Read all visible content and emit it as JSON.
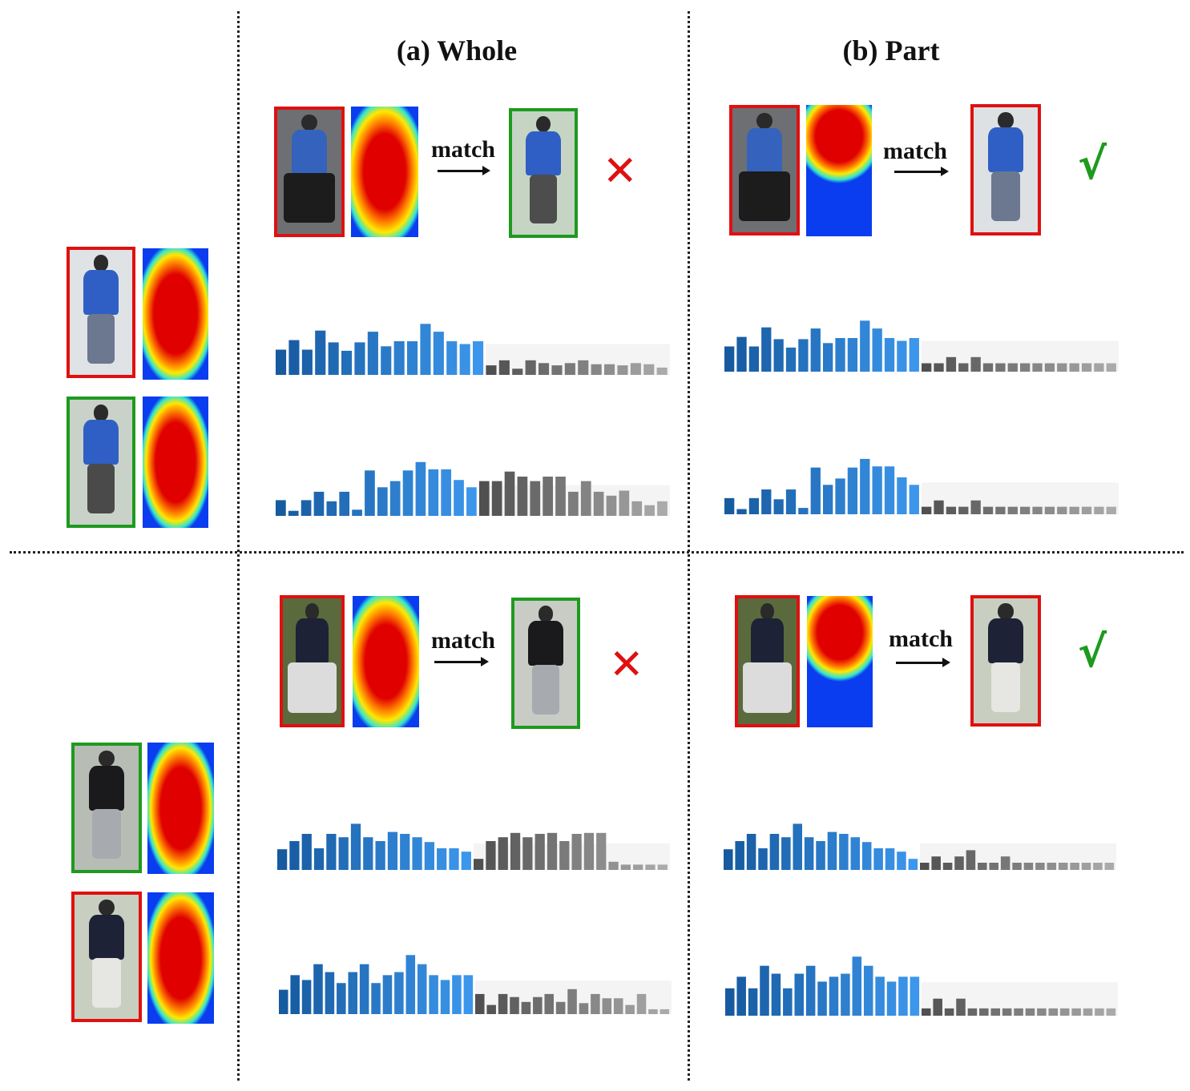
{
  "headers": {
    "whole": "(a) Whole",
    "part": "(b) Part"
  },
  "match_label": "match",
  "colors": {
    "wrong_border": "#e01010",
    "correct_border": "#1e9a1e",
    "wrong_mark": "#e01010",
    "correct_mark": "#1e9a1e",
    "feature_blue": "#1f78c8",
    "feature_gray": "#6e6e6e"
  },
  "panels": [
    {
      "row": 1,
      "query_images": [
        {
          "border": "red",
          "icon": "person-blue-shirt-shorts-back"
        },
        {
          "border": "green",
          "icon": "person-blue-shirt-shorts-front"
        }
      ],
      "whole": {
        "probe": {
          "border": "red",
          "icon": "person-seated-occluded-by-chair"
        },
        "heatmap": "full-body",
        "result": {
          "border": "green",
          "icon": "person-blue-shirt-walking"
        },
        "mark": "✕",
        "mark_icon": "cross-icon",
        "bars_top": [
          0.45,
          0.62,
          0.45,
          0.79,
          0.58,
          0.43,
          0.58,
          0.77,
          0.51,
          0.6,
          0.6,
          0.91,
          0.77,
          0.6,
          0.55,
          0.6,
          0.17,
          0.26,
          0.11,
          0.26,
          0.21,
          0.17,
          0.21,
          0.26,
          0.19,
          0.19,
          0.17,
          0.21,
          0.19,
          0.13
        ],
        "bars_bottom": [
          0.28,
          0.09,
          0.28,
          0.43,
          0.26,
          0.43,
          0.11,
          0.81,
          0.51,
          0.62,
          0.81,
          0.96,
          0.83,
          0.83,
          0.64,
          0.51,
          0.62,
          0.62,
          0.79,
          0.7,
          0.62,
          0.7,
          0.7,
          0.43,
          0.62,
          0.43,
          0.36,
          0.45,
          0.26,
          0.19,
          0.26
        ]
      },
      "part": {
        "probe": {
          "border": "red",
          "icon": "person-seated-occluded-by-chair"
        },
        "heatmap": "upper-body",
        "result": {
          "border": "red",
          "icon": "person-blue-shirt-shorts-back"
        },
        "mark": "√",
        "mark_icon": "checkmark-icon",
        "bars_top": [
          0.45,
          0.62,
          0.45,
          0.79,
          0.58,
          0.43,
          0.58,
          0.77,
          0.51,
          0.6,
          0.6,
          0.91,
          0.77,
          0.6,
          0.55,
          0.6,
          0.15,
          0.15,
          0.26,
          0.15,
          0.26,
          0.15,
          0.15,
          0.15,
          0.15,
          0.15,
          0.15,
          0.15,
          0.15,
          0.15,
          0.15,
          0.15
        ],
        "bars_bottom": [
          0.28,
          0.09,
          0.28,
          0.43,
          0.26,
          0.43,
          0.11,
          0.81,
          0.51,
          0.62,
          0.81,
          0.96,
          0.83,
          0.83,
          0.64,
          0.51,
          0.13,
          0.24,
          0.13,
          0.13,
          0.24,
          0.13,
          0.13,
          0.13,
          0.13,
          0.13,
          0.13,
          0.13,
          0.13,
          0.13,
          0.13,
          0.13
        ]
      }
    },
    {
      "row": 2,
      "query_images": [
        {
          "border": "green",
          "icon": "person-black-jacket-back"
        },
        {
          "border": "red",
          "icon": "person-dark-top-white-pants-front"
        }
      ],
      "whole": {
        "probe": {
          "border": "red",
          "icon": "person-occluded-by-trash-bin"
        },
        "heatmap": "full-body",
        "result": {
          "border": "green",
          "icon": "person-black-jacket-back"
        },
        "mark": "✕",
        "mark_icon": "cross-icon",
        "bars_top": [
          0.43,
          0.6,
          0.75,
          0.45,
          0.75,
          0.68,
          0.96,
          0.68,
          0.6,
          0.79,
          0.75,
          0.68,
          0.58,
          0.45,
          0.45,
          0.38,
          0.23,
          0.6,
          0.68,
          0.77,
          0.68,
          0.75,
          0.77,
          0.6,
          0.75,
          0.77,
          0.77,
          0.17,
          0.11,
          0.11,
          0.11,
          0.11
        ],
        "bars_bottom": [
          0.4,
          0.64,
          0.56,
          0.82,
          0.69,
          0.51,
          0.69,
          0.82,
          0.51,
          0.64,
          0.69,
          0.97,
          0.82,
          0.64,
          0.56,
          0.64,
          0.64,
          0.33,
          0.15,
          0.33,
          0.28,
          0.2,
          0.28,
          0.33,
          0.2,
          0.41,
          0.18,
          0.33,
          0.26,
          0.26,
          0.15,
          0.33,
          0.08,
          0.08
        ]
      },
      "part": {
        "probe": {
          "border": "red",
          "icon": "person-occluded-by-trash-bin"
        },
        "heatmap": "upper-body",
        "result": {
          "border": "red",
          "icon": "person-dark-top-white-pants-front"
        },
        "mark": "√",
        "mark_icon": "checkmark-icon",
        "bars_top": [
          0.43,
          0.6,
          0.75,
          0.45,
          0.75,
          0.68,
          0.96,
          0.68,
          0.6,
          0.79,
          0.75,
          0.68,
          0.58,
          0.45,
          0.45,
          0.38,
          0.23,
          0.15,
          0.28,
          0.15,
          0.28,
          0.41,
          0.15,
          0.15,
          0.28,
          0.15,
          0.15,
          0.15,
          0.15,
          0.15,
          0.15,
          0.15,
          0.15,
          0.15
        ],
        "bars_bottom": [
          0.45,
          0.64,
          0.45,
          0.82,
          0.69,
          0.45,
          0.69,
          0.82,
          0.56,
          0.64,
          0.69,
          0.97,
          0.82,
          0.64,
          0.56,
          0.64,
          0.64,
          0.12,
          0.28,
          0.12,
          0.28,
          0.12,
          0.12,
          0.12,
          0.12,
          0.12,
          0.12,
          0.12,
          0.12,
          0.12,
          0.12,
          0.12,
          0.12,
          0.12
        ]
      }
    }
  ]
}
